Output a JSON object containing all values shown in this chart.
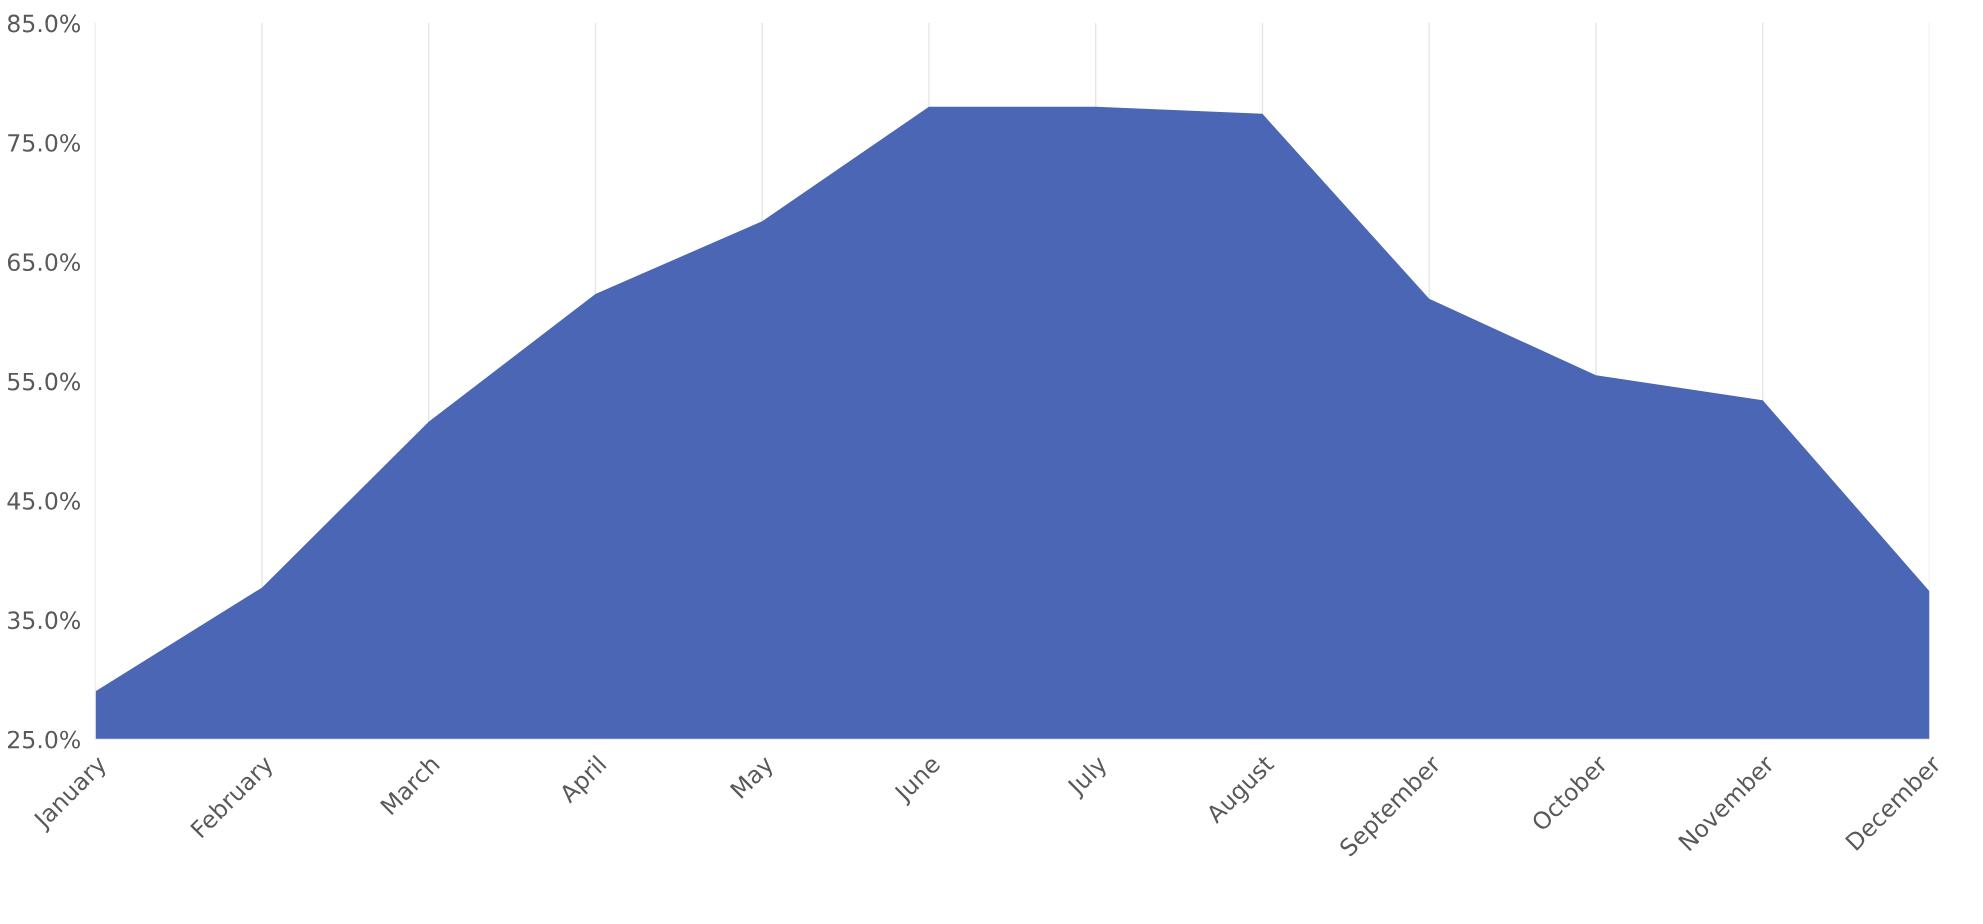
{
  "chart_data": {
    "type": "area",
    "categories": [
      "January",
      "February",
      "March",
      "April",
      "May",
      "June",
      "July",
      "August",
      "September",
      "October",
      "November",
      "December"
    ],
    "series": [
      {
        "color": "#4a66b4",
        "values": [
          29.0,
          37.7,
          51.6,
          62.3,
          68.4,
          78.0,
          78.0,
          77.4,
          61.9,
          55.5,
          53.4,
          37.4
        ]
      }
    ],
    "ylim": [
      25,
      85
    ],
    "yticks": [
      {
        "value": 25,
        "label": "25.0%"
      },
      {
        "value": 35,
        "label": "35.0%"
      },
      {
        "value": 45,
        "label": "45.0%"
      },
      {
        "value": 55,
        "label": "55.0%"
      },
      {
        "value": 65,
        "label": "65.0%"
      },
      {
        "value": 75,
        "label": "75.0%"
      },
      {
        "value": 85,
        "label": "85.0%"
      }
    ],
    "grid": "x"
  }
}
